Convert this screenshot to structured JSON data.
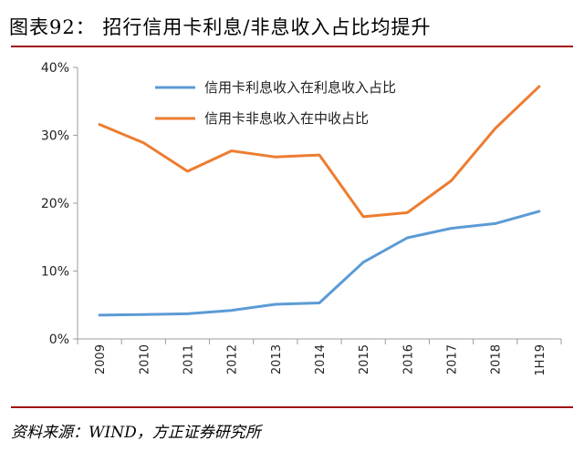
{
  "header": {
    "title": "图表92：   招行信用卡利息/非息收入占比均提升"
  },
  "footer": {
    "source": "资料来源：WIND，方正证券研究所"
  },
  "chart_data": {
    "type": "line",
    "categories": [
      "2009",
      "2010",
      "2011",
      "2012",
      "2013",
      "2014",
      "2015",
      "2016",
      "2017",
      "2018",
      "1H19"
    ],
    "series": [
      {
        "name": "信用卡利息收入在利息收入占比",
        "color": "#5b9bd5",
        "values": [
          3.5,
          3.6,
          3.7,
          4.2,
          5.1,
          5.3,
          11.3,
          14.9,
          16.3,
          17.0,
          18.8
        ]
      },
      {
        "name": "信用卡非息收入在中收占比",
        "color": "#ed7d31",
        "values": [
          31.6,
          28.9,
          24.7,
          27.7,
          26.8,
          27.1,
          18.0,
          18.6,
          23.3,
          31.0,
          37.2
        ]
      }
    ],
    "y_ticks": [
      "0%",
      "10%",
      "20%",
      "30%",
      "40%"
    ],
    "ylim": [
      0,
      40
    ],
    "unit": "%",
    "legend_position": "top-center",
    "grid": false
  }
}
